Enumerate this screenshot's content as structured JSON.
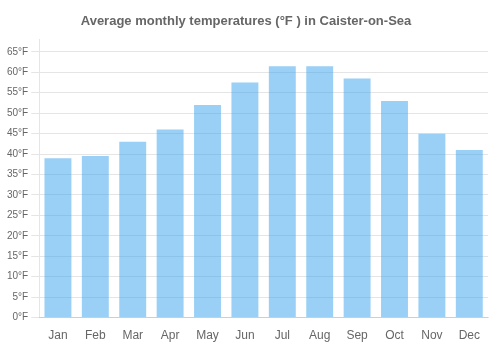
{
  "chart_data": {
    "type": "bar",
    "title": "Average monthly temperatures (°F ) in Caister-on-Sea",
    "categories": [
      "Jan",
      "Feb",
      "Mar",
      "Apr",
      "May",
      "Jun",
      "Jul",
      "Aug",
      "Sep",
      "Oct",
      "Nov",
      "Dec"
    ],
    "values": [
      39,
      39.5,
      43,
      46,
      52,
      57.5,
      61.5,
      61.5,
      58.5,
      53,
      45,
      41
    ],
    "ylim": [
      0,
      68
    ],
    "yticks": [
      {
        "value": 0,
        "label": "0°F"
      },
      {
        "value": 5,
        "label": "5°F"
      },
      {
        "value": 10,
        "label": "10°F"
      },
      {
        "value": 15,
        "label": "15°F"
      },
      {
        "value": 20,
        "label": "20°F"
      },
      {
        "value": 25,
        "label": "25°F"
      },
      {
        "value": 30,
        "label": "30°F"
      },
      {
        "value": 35,
        "label": "35°F"
      },
      {
        "value": 40,
        "label": "40°F"
      },
      {
        "value": 45,
        "label": "45°F"
      },
      {
        "value": 50,
        "label": "50°F"
      },
      {
        "value": 55,
        "label": "55°F"
      },
      {
        "value": 60,
        "label": "60°F"
      },
      {
        "value": 65,
        "label": "65°F"
      }
    ],
    "grid": true
  }
}
